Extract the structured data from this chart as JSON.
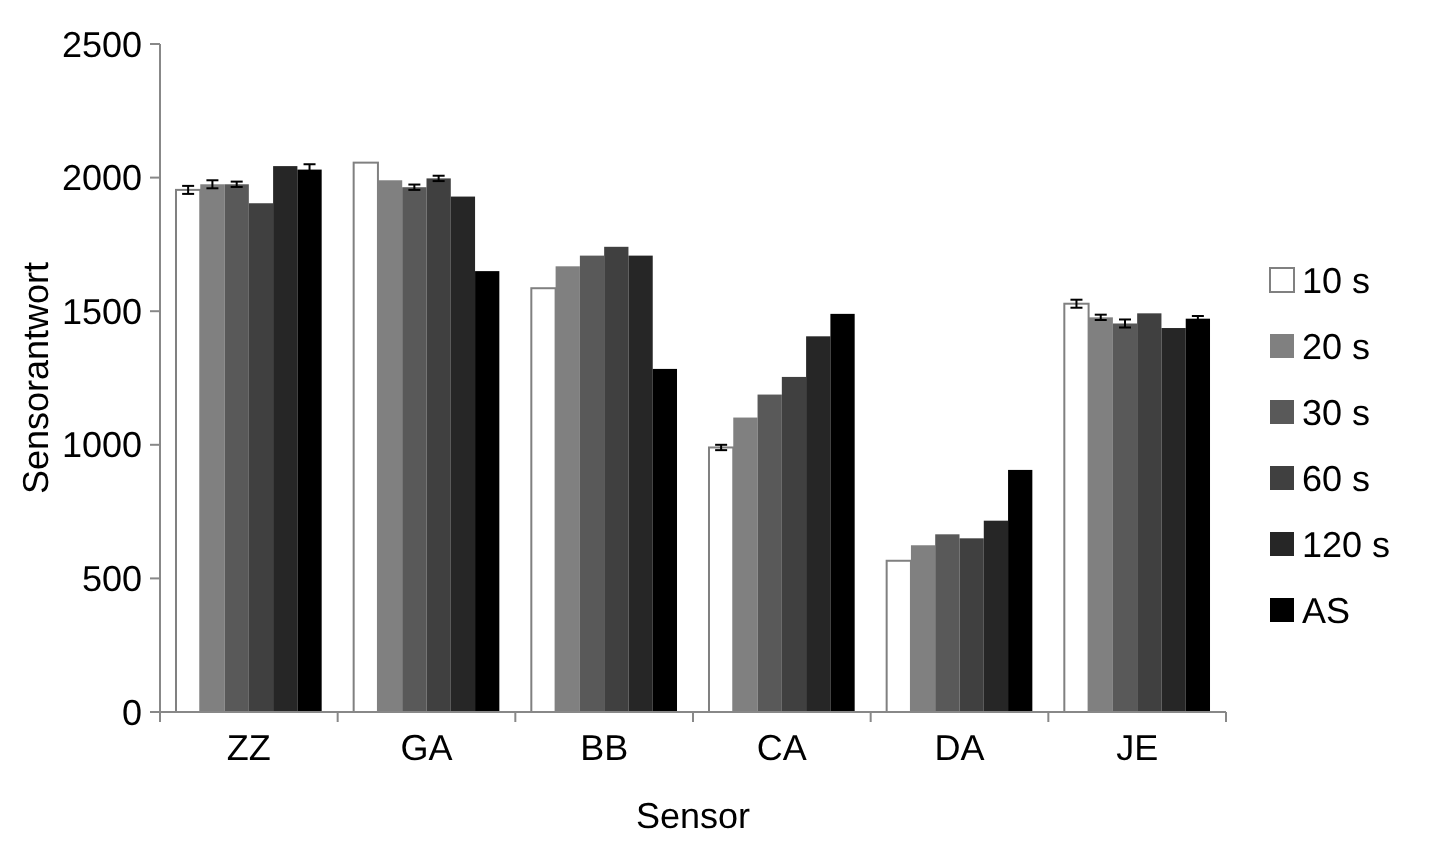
{
  "chart_data": {
    "type": "bar",
    "xlabel": "Sensor",
    "ylabel": "Sensorantwort",
    "categories": [
      "ZZ",
      "GA",
      "BB",
      "CA",
      "DA",
      "JE"
    ],
    "ylim": [
      0,
      2500
    ],
    "yticks": [
      0,
      500,
      1000,
      1500,
      2000,
      2500
    ],
    "grid": false,
    "legend": "right",
    "series": [
      {
        "name": "10 s",
        "color": "#ffffff",
        "values": [
          1954,
          2056,
          1586,
          990,
          566,
          1528
        ],
        "errors": [
          15,
          null,
          null,
          10,
          null,
          15
        ]
      },
      {
        "name": "20 s",
        "color": "#808080",
        "values": [
          1975,
          1990,
          1668,
          1102,
          624,
          1477
        ],
        "errors": [
          15,
          null,
          null,
          null,
          null,
          10
        ]
      },
      {
        "name": "30 s",
        "color": "#595959",
        "values": [
          1975,
          1964,
          1708,
          1188,
          665,
          1454
        ],
        "errors": [
          10,
          10,
          null,
          null,
          null,
          15
        ]
      },
      {
        "name": "60 s",
        "color": "#404040",
        "values": [
          1904,
          1997,
          1741,
          1254,
          650,
          1492
        ],
        "errors": [
          null,
          10,
          null,
          null,
          null,
          null
        ]
      },
      {
        "name": "120 s",
        "color": "#262626",
        "values": [
          2043,
          1929,
          1708,
          1406,
          716,
          1437
        ],
        "errors": [
          null,
          null,
          null,
          null,
          null,
          null
        ]
      },
      {
        "name": "AS",
        "color": "#000000",
        "values": [
          2030,
          1650,
          1284,
          1490,
          906,
          1472
        ],
        "errors": [
          20,
          null,
          null,
          null,
          null,
          10
        ]
      }
    ]
  }
}
